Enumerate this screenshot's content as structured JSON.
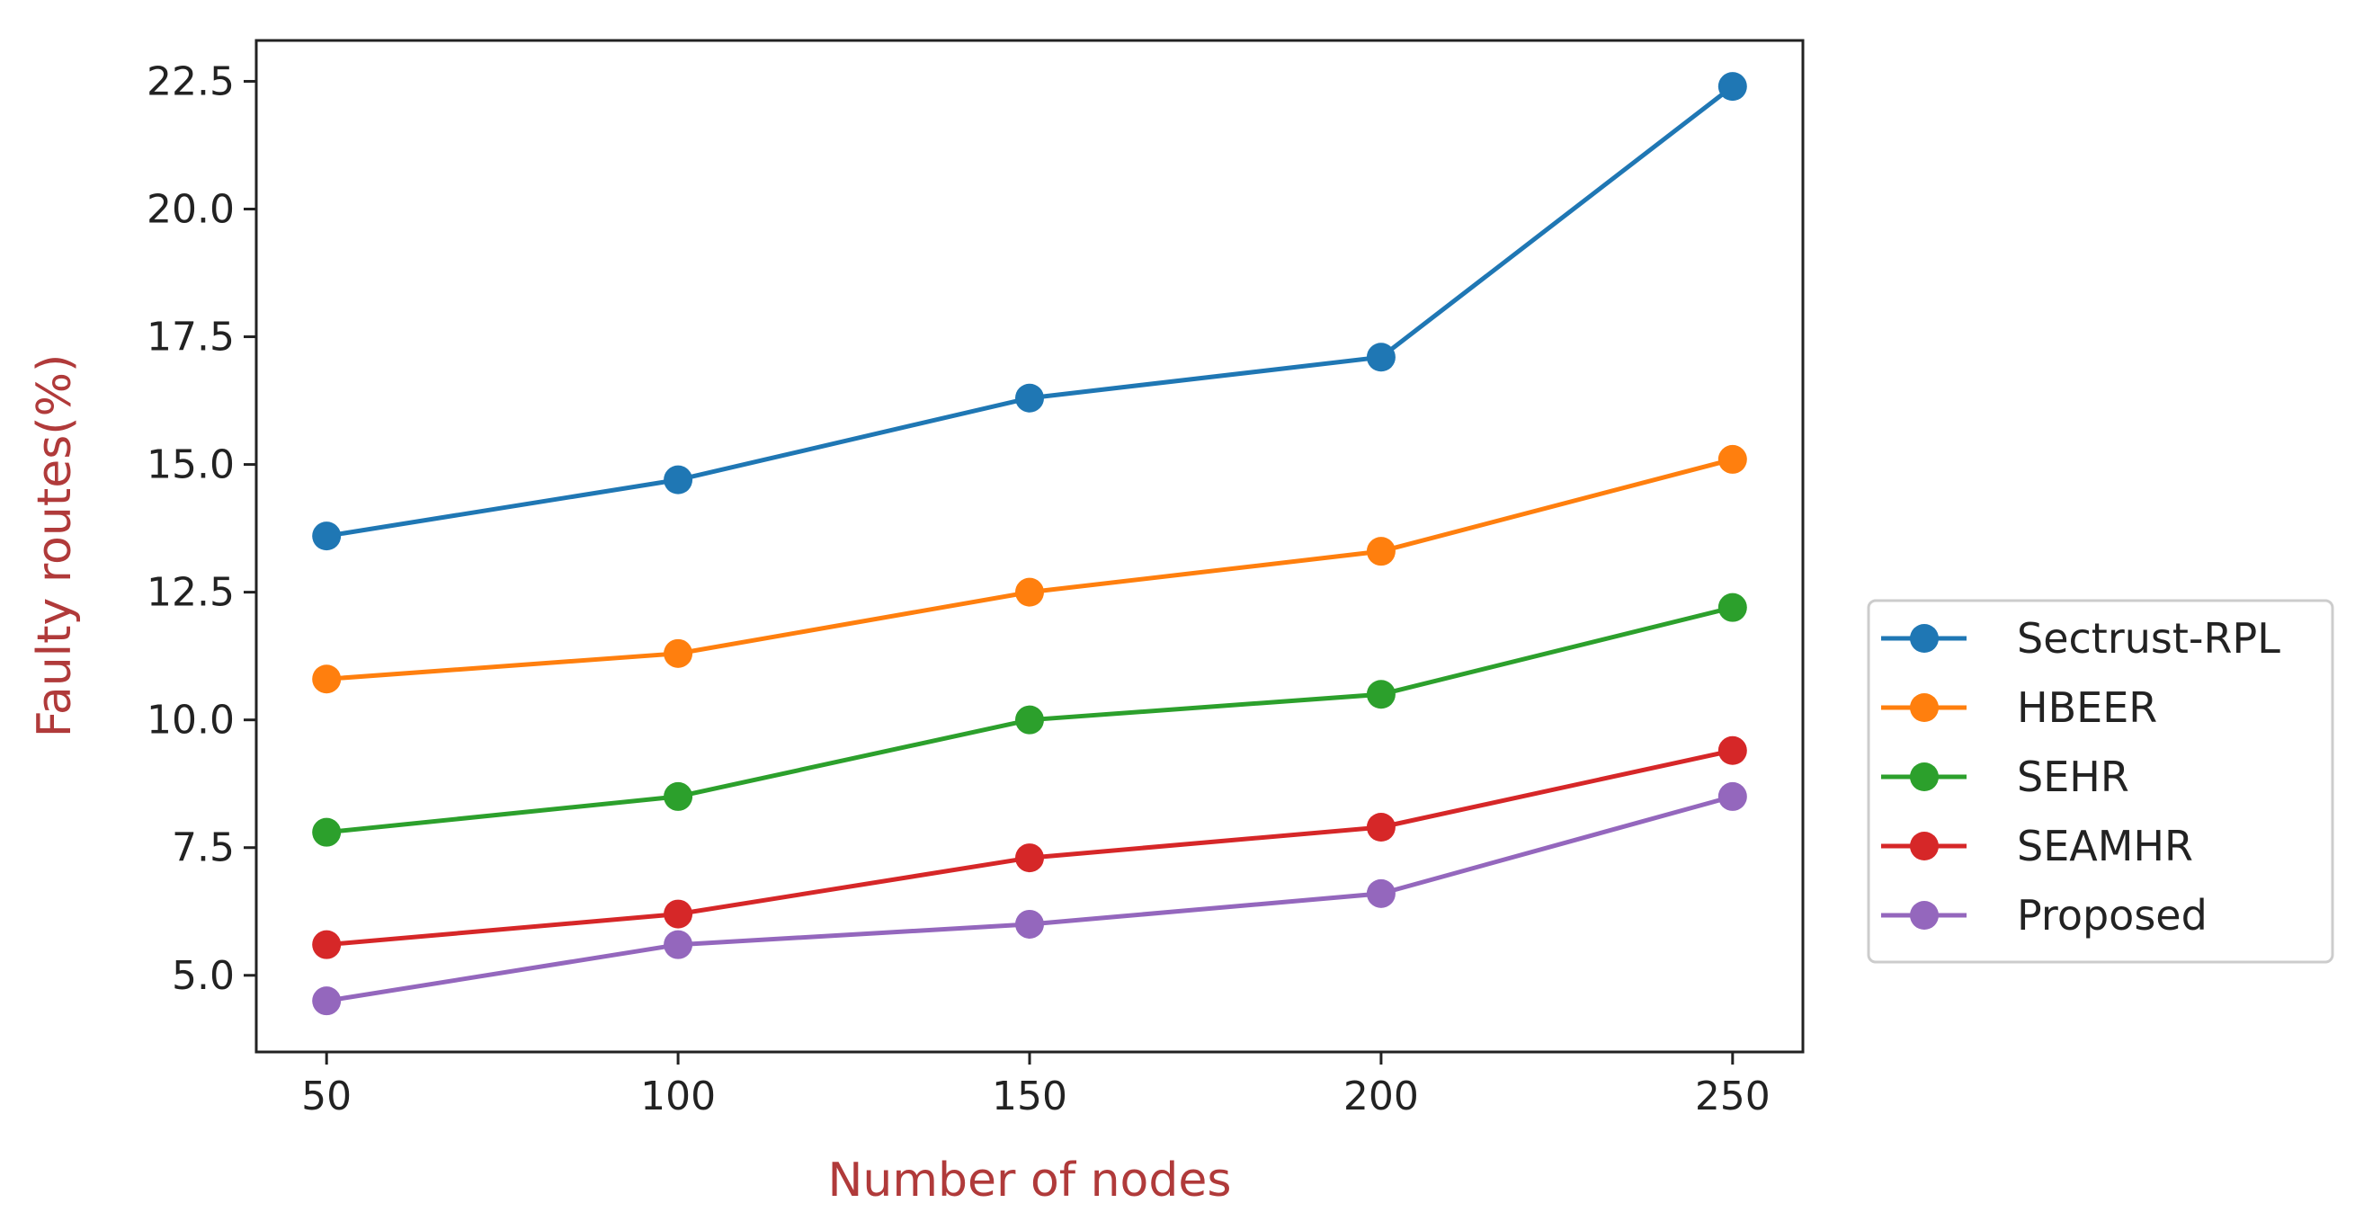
{
  "chart_data": {
    "type": "line",
    "title": "",
    "xlabel": "Number of nodes",
    "ylabel": "Faulty routes(%)",
    "label_color": "#b03a3a",
    "x": [
      50,
      100,
      150,
      200,
      250
    ],
    "xlim": [
      40,
      260
    ],
    "ylim": [
      3.5,
      23.3
    ],
    "xticks": [
      "50",
      "100",
      "150",
      "200",
      "250"
    ],
    "yticks": [
      "5.0",
      "7.5",
      "10.0",
      "12.5",
      "15.0",
      "17.5",
      "20.0",
      "22.5"
    ],
    "grid": false,
    "legend_position": "center-right, outside plot area",
    "marker": "circle",
    "series": [
      {
        "name": "Sectrust-RPL",
        "color": "#1f77b4",
        "values": [
          13.6,
          14.7,
          16.3,
          17.1,
          22.4
        ]
      },
      {
        "name": "HBEER",
        "color": "#ff7f0e",
        "values": [
          10.8,
          11.3,
          12.5,
          13.3,
          15.1
        ]
      },
      {
        "name": "SEHR",
        "color": "#2ca02c",
        "values": [
          7.8,
          8.5,
          10.0,
          10.5,
          12.2
        ]
      },
      {
        "name": "SEAMHR",
        "color": "#d62728",
        "values": [
          5.6,
          6.2,
          7.3,
          7.9,
          9.4
        ]
      },
      {
        "name": "Proposed",
        "color": "#9467bd",
        "values": [
          4.5,
          5.6,
          6.0,
          6.6,
          8.5
        ]
      }
    ]
  }
}
